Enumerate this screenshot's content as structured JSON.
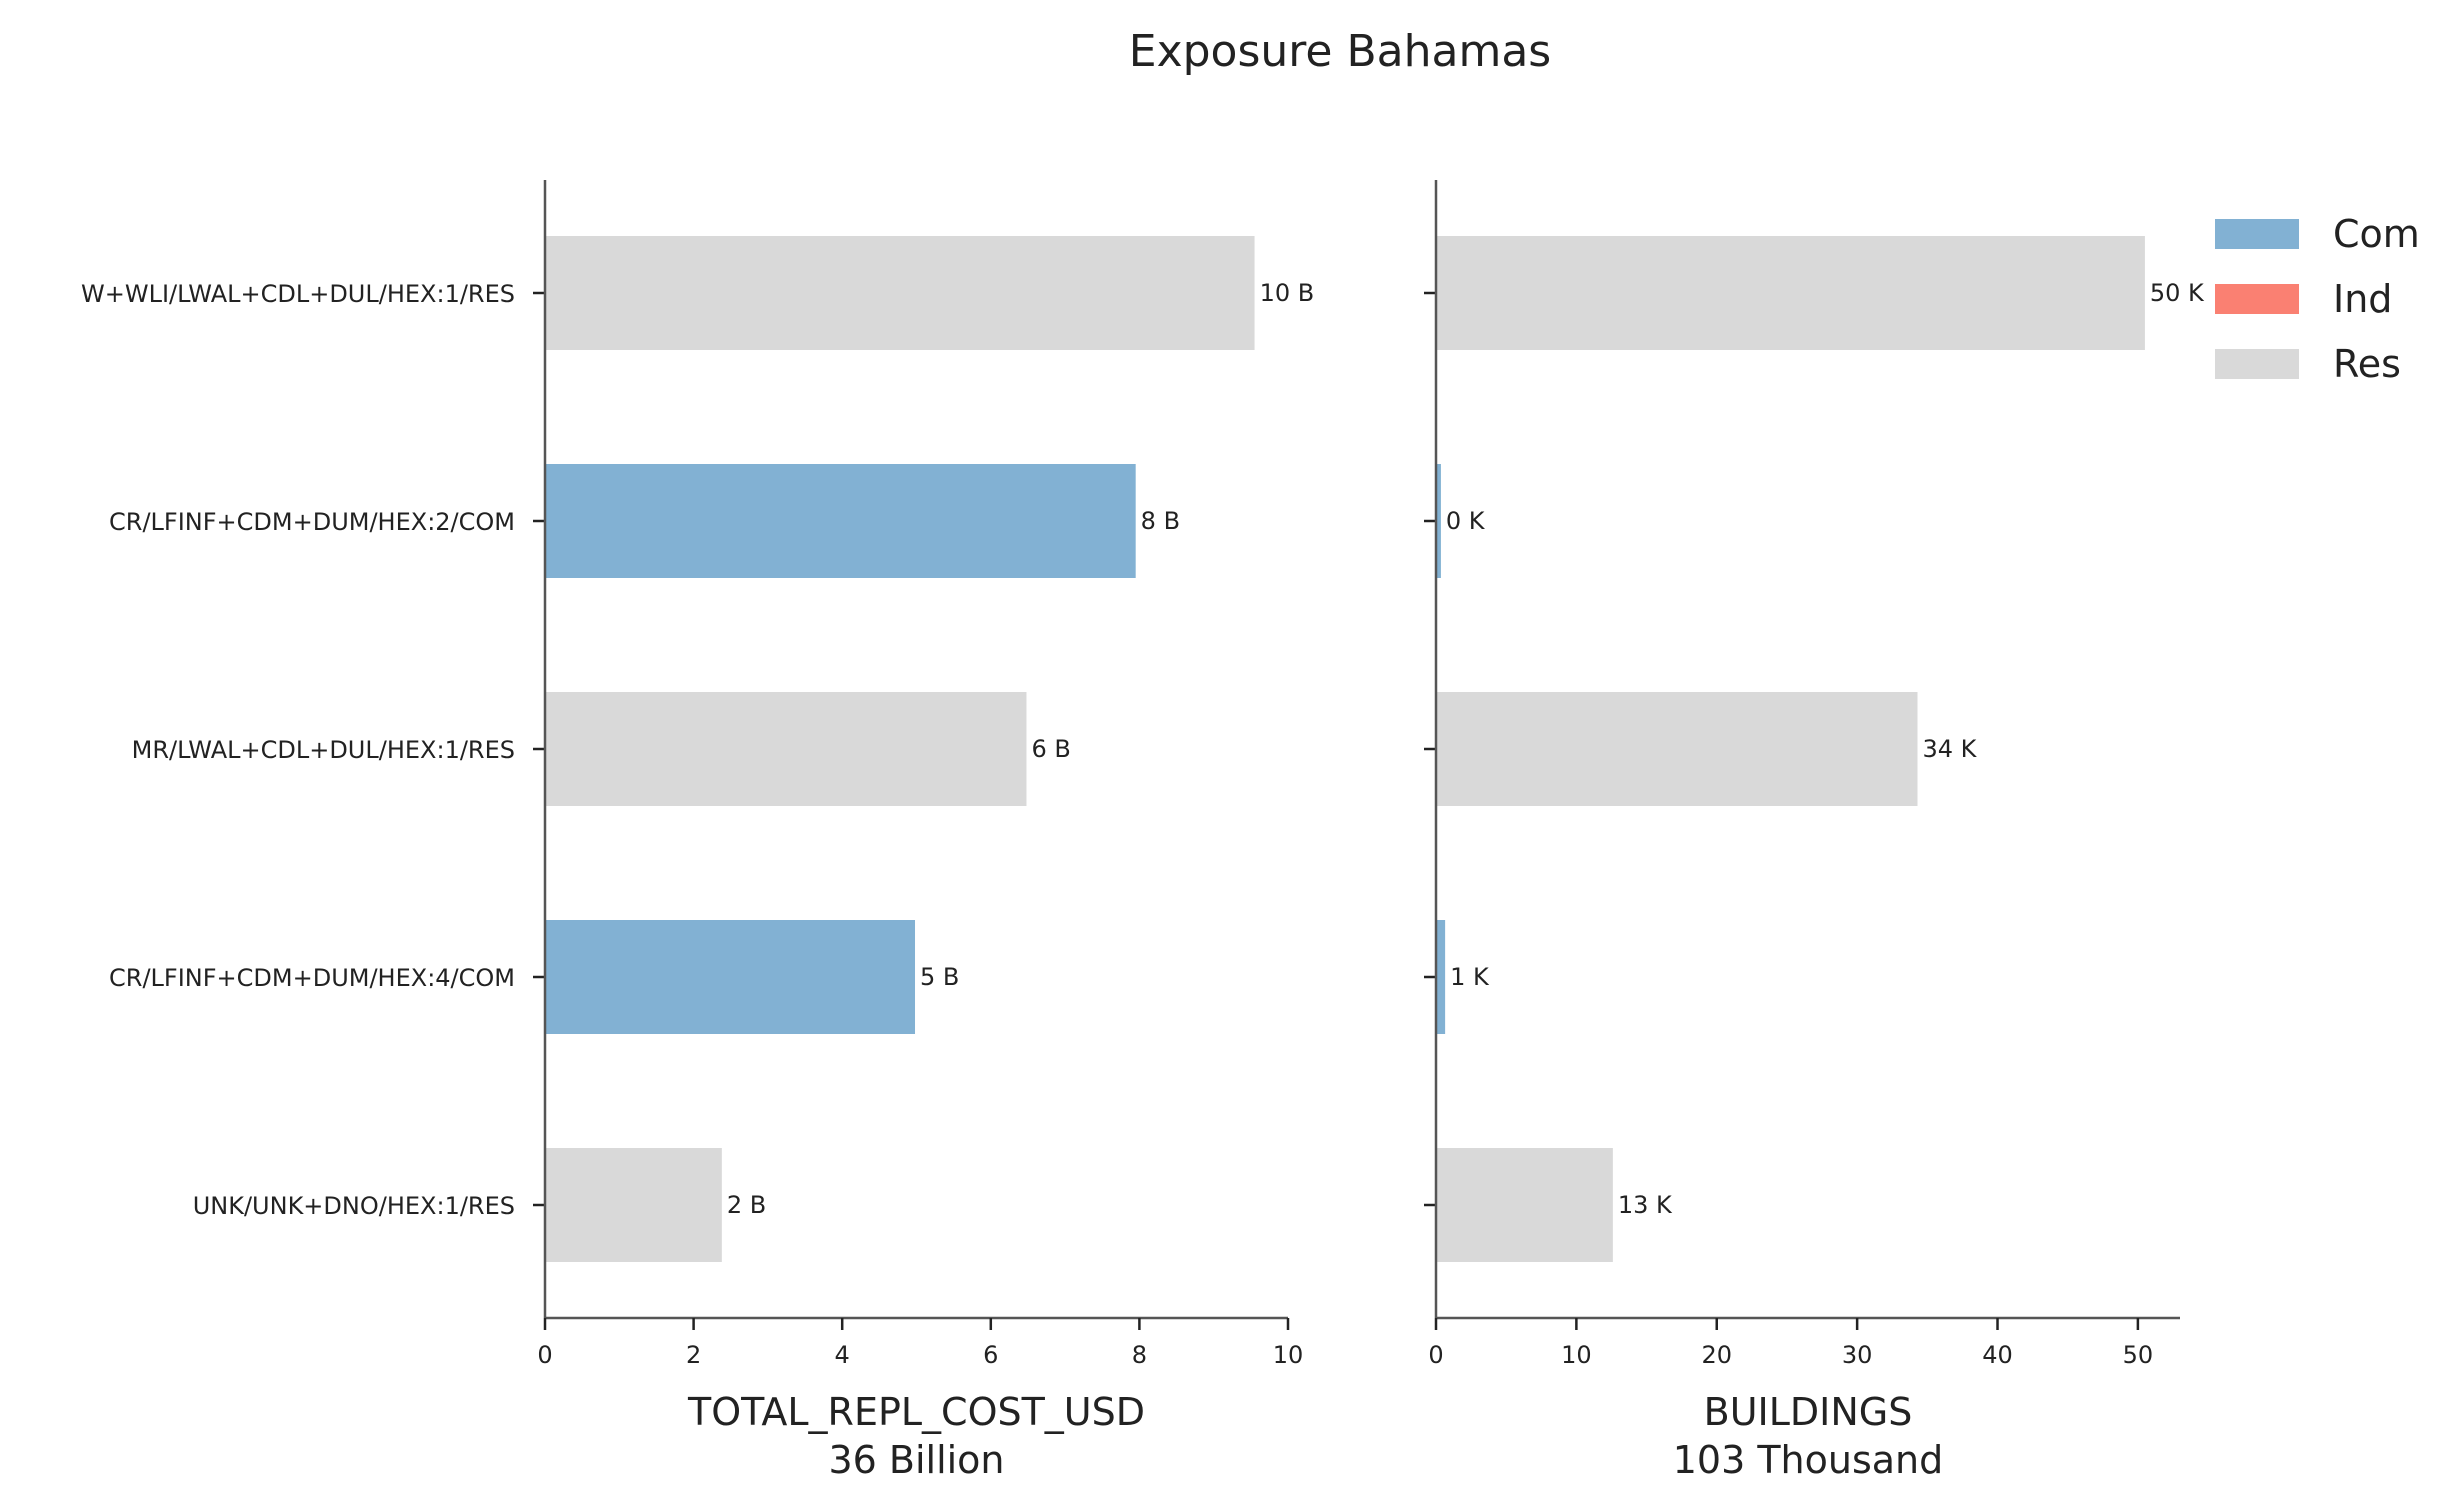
{
  "title": "Exposure Bahamas",
  "colors": {
    "Com": "#82b1d3",
    "Ind": "#fa8072",
    "Res": "#d9d9d9"
  },
  "legend": [
    {
      "key": "Com",
      "label": "Com"
    },
    {
      "key": "Ind",
      "label": "Ind"
    },
    {
      "key": "Res",
      "label": "Res"
    }
  ],
  "chart_data": [
    {
      "type": "bar",
      "orientation": "horizontal",
      "categories": [
        "W+WLI/LWAL+CDL+DUL/HEX:1/RES",
        "CR/LFINF+CDM+DUM/HEX:2/COM",
        "MR/LWAL+CDL+DUL/HEX:1/RES",
        "CR/LFINF+CDM+DUM/HEX:4/COM",
        "UNK/UNK+DNO/HEX:1/RES"
      ],
      "groups": [
        "Res",
        "Com",
        "Res",
        "Com",
        "Res"
      ],
      "values": [
        9.55,
        7.95,
        6.48,
        4.98,
        2.38
      ],
      "data_labels": [
        "10 B",
        "8 B",
        "6 B",
        "5 B",
        "2 B"
      ],
      "xlabel": "TOTAL_REPL_COST_USD",
      "xlabel_sub": "36 Billion",
      "xlim": [
        0,
        10
      ],
      "xticks": [
        0,
        2,
        4,
        6,
        8,
        10
      ],
      "grid": false
    },
    {
      "type": "bar",
      "orientation": "horizontal",
      "categories": [
        "W+WLI/LWAL+CDL+DUL/HEX:1/RES",
        "CR/LFINF+CDM+DUM/HEX:2/COM",
        "MR/LWAL+CDL+DUL/HEX:1/RES",
        "CR/LFINF+CDM+DUM/HEX:4/COM",
        "UNK/UNK+DNO/HEX:1/RES"
      ],
      "groups": [
        "Res",
        "Com",
        "Res",
        "Com",
        "Res"
      ],
      "values": [
        50.5,
        0.35,
        34.3,
        0.65,
        12.6
      ],
      "data_labels": [
        "50 K",
        "0 K",
        "34 K",
        "1 K",
        "13 K"
      ],
      "xlabel": "BUILDINGS",
      "xlabel_sub": "103 Thousand",
      "xlim": [
        0,
        53
      ],
      "xticks": [
        0,
        10,
        20,
        30,
        40,
        50
      ],
      "grid": false,
      "legend_position": "top-right"
    }
  ]
}
